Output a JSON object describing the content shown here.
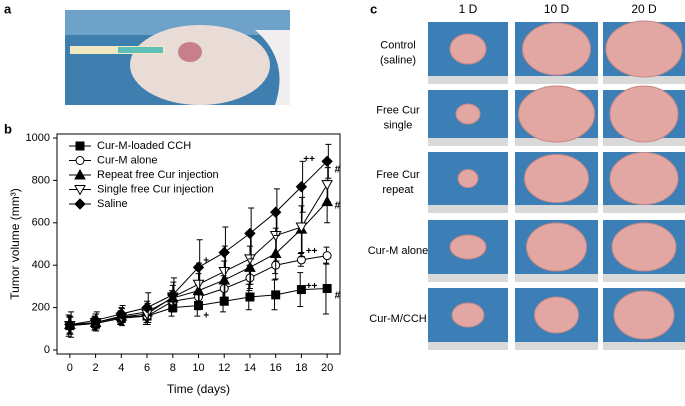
{
  "panel_labels": [
    "a",
    "b",
    "c"
  ],
  "chart_data": {
    "type": "line",
    "y_label": "Tumor volume (mm³)",
    "x_label": "Time (days)",
    "x": [
      0,
      2,
      4,
      6,
      8,
      10,
      12,
      14,
      16,
      18,
      20
    ],
    "xlim": [
      -1,
      21
    ],
    "xticks": [
      0,
      2,
      4,
      6,
      8,
      10,
      12,
      14,
      16,
      18,
      20
    ],
    "ylim": [
      0,
      1000
    ],
    "yticks": [
      0,
      200,
      400,
      600,
      800,
      1000
    ],
    "legend": "upper left",
    "series": [
      {
        "name": "Cur-M-loaded CCH",
        "marker": "square",
        "filled": true,
        "color": "#000000",
        "values": [
          115,
          125,
          150,
          160,
          200,
          210,
          230,
          250,
          260,
          285,
          290
        ],
        "errors": [
          50,
          30,
          30,
          40,
          40,
          50,
          50,
          60,
          70,
          80,
          120
        ]
      },
      {
        "name": "Cur-M alone",
        "marker": "circle",
        "filled": false,
        "color": "#000000",
        "values": [
          115,
          130,
          155,
          160,
          230,
          250,
          290,
          340,
          400,
          425,
          445
        ],
        "errors": [
          40,
          30,
          30,
          30,
          50,
          60,
          60,
          60,
          40,
          30,
          40
        ]
      },
      {
        "name": "Repeat free Cur injection",
        "marker": "triangle-up",
        "filled": true,
        "color": "#000000",
        "values": [
          120,
          130,
          160,
          180,
          245,
          280,
          330,
          390,
          455,
          570,
          700
        ],
        "errors": [
          40,
          40,
          40,
          50,
          60,
          80,
          90,
          100,
          120,
          110,
          100
        ]
      },
      {
        "name": "Single free Cur injection",
        "marker": "triangle-down",
        "filled": false,
        "color": "#000000",
        "values": [
          115,
          130,
          155,
          170,
          250,
          310,
          370,
          430,
          540,
          580,
          780
        ],
        "errors": [
          40,
          40,
          40,
          50,
          70,
          100,
          120,
          120,
          120,
          140,
          80
        ]
      },
      {
        "name": "Saline",
        "marker": "diamond",
        "filled": true,
        "color": "#000000",
        "values": [
          120,
          140,
          170,
          200,
          260,
          390,
          460,
          550,
          650,
          770,
          890
        ],
        "errors": [
          60,
          40,
          40,
          70,
          80,
          130,
          120,
          120,
          110,
          120,
          80
        ]
      }
    ],
    "annotations": [
      {
        "text": "++",
        "x": 18.6,
        "y": 900
      },
      {
        "text": "#",
        "x": 20.8,
        "y": 850
      },
      {
        "text": "#",
        "x": 20.8,
        "y": 680
      },
      {
        "text": "++",
        "x": 18.8,
        "y": 465
      },
      {
        "text": "++",
        "x": 18.8,
        "y": 300
      },
      {
        "text": "#",
        "x": 20.8,
        "y": 255
      },
      {
        "text": "+",
        "x": 10.6,
        "y": 420
      },
      {
        "text": "+",
        "x": 10.6,
        "y": 160
      }
    ]
  },
  "photo_grid": {
    "columns": [
      "1 D",
      "10 D",
      "20 D"
    ],
    "rows": [
      [
        "Control",
        "(saline)"
      ],
      [
        "Free Cur",
        "single"
      ],
      [
        "Free Cur",
        "repeat"
      ],
      [
        "Cur-M alone"
      ],
      [
        "Cur-M/CCH"
      ]
    ]
  }
}
